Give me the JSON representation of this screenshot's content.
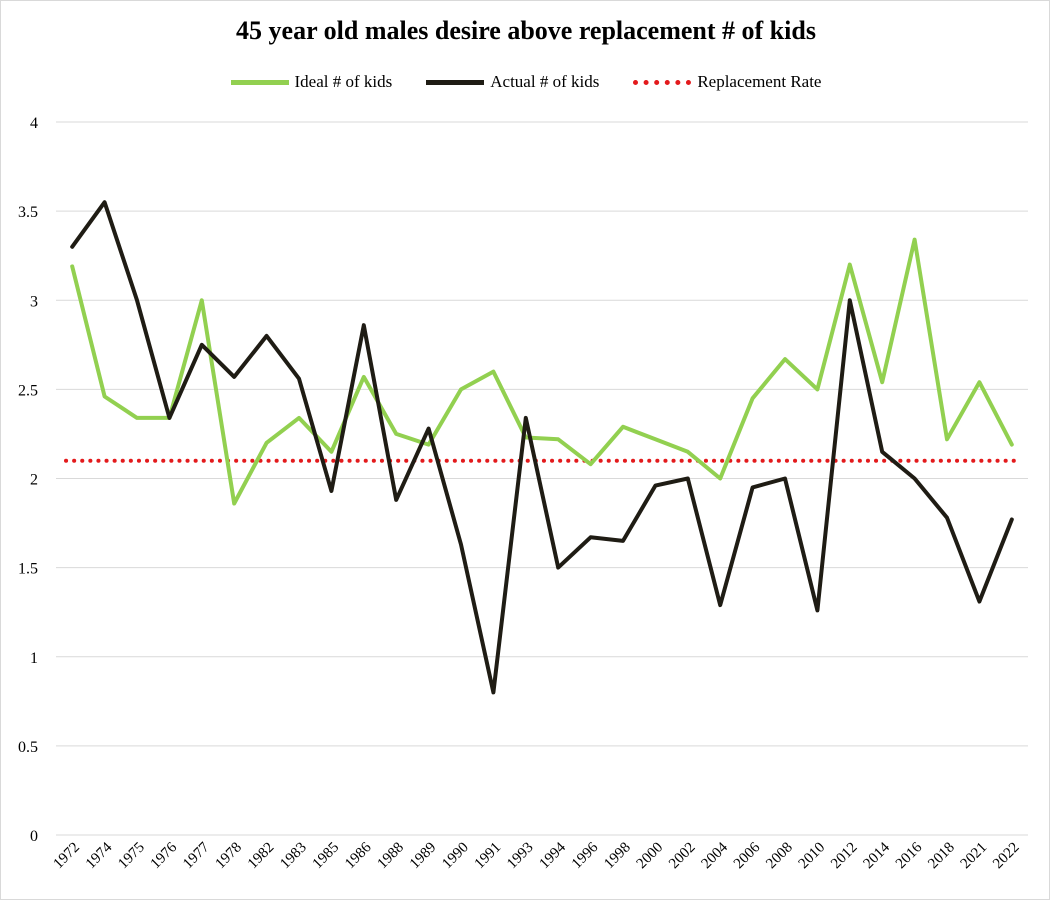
{
  "chart_data": {
    "type": "line",
    "title": "45 year old males desire above replacement # of kids",
    "xlabel": "",
    "ylabel": "",
    "ylim": [
      0,
      4
    ],
    "yticks": [
      "0",
      "0.5",
      "1",
      "1.5",
      "2",
      "2.5",
      "3",
      "3.5",
      "4"
    ],
    "grid": true,
    "legend_position": "top",
    "categories": [
      "1972",
      "1974",
      "1975",
      "1976",
      "1977",
      "1978",
      "1982",
      "1983",
      "1985",
      "1986",
      "1988",
      "1989",
      "1990",
      "1991",
      "1993",
      "1994",
      "1996",
      "1998",
      "2000",
      "2002",
      "2004",
      "2006",
      "2008",
      "2010",
      "2012",
      "2014",
      "2016",
      "2018",
      "2021",
      "2022"
    ],
    "series": [
      {
        "name": "Ideal # of kids",
        "color": "#92d050",
        "style": "solid",
        "values": [
          3.19,
          2.46,
          2.34,
          2.34,
          3.0,
          1.86,
          2.2,
          2.34,
          2.15,
          2.57,
          2.25,
          2.19,
          2.5,
          2.6,
          2.23,
          2.22,
          2.08,
          2.29,
          2.22,
          2.15,
          2.0,
          2.45,
          2.67,
          2.5,
          3.2,
          2.54,
          3.34,
          2.22,
          2.54,
          2.19
        ]
      },
      {
        "name": "Actual # of kids",
        "color": "#1f1c14",
        "style": "solid",
        "values": [
          3.3,
          3.55,
          3.0,
          2.34,
          2.75,
          2.57,
          2.8,
          2.56,
          1.93,
          2.86,
          1.88,
          2.28,
          1.63,
          0.8,
          2.34,
          1.5,
          1.67,
          1.65,
          1.96,
          2.0,
          1.29,
          1.95,
          2.0,
          1.26,
          3.0,
          2.15,
          2.0,
          1.78,
          1.31,
          1.77
        ]
      },
      {
        "name": "Replacement Rate",
        "color": "#e31a1c",
        "style": "dotted",
        "values": [
          2.1,
          2.1,
          2.1,
          2.1,
          2.1,
          2.1,
          2.1,
          2.1,
          2.1,
          2.1,
          2.1,
          2.1,
          2.1,
          2.1,
          2.1,
          2.1,
          2.1,
          2.1,
          2.1,
          2.1,
          2.1,
          2.1,
          2.1,
          2.1,
          2.1,
          2.1,
          2.1,
          2.1,
          2.1,
          2.1
        ]
      }
    ]
  }
}
